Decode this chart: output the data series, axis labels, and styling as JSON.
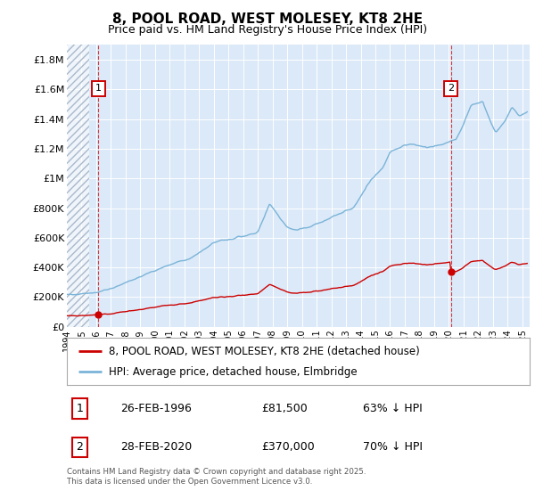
{
  "title": "8, POOL ROAD, WEST MOLESEY, KT8 2HE",
  "subtitle": "Price paid vs. HM Land Registry's House Price Index (HPI)",
  "legend1": "8, POOL ROAD, WEST MOLESEY, KT8 2HE (detached house)",
  "legend2": "HPI: Average price, detached house, Elmbridge",
  "transaction1_label": "1",
  "transaction1_date": "26-FEB-1996",
  "transaction1_price": "£81,500",
  "transaction1_hpi": "63% ↓ HPI",
  "transaction2_label": "2",
  "transaction2_date": "28-FEB-2020",
  "transaction2_price": "£370,000",
  "transaction2_hpi": "70% ↓ HPI",
  "footer_line1": "Contains HM Land Registry data © Crown copyright and database right 2025.",
  "footer_line2": "This data is licensed under the Open Government Licence v3.0.",
  "xmin": 1994.0,
  "xmax": 2025.5,
  "ymin": 0,
  "ymax": 1900000,
  "yticks": [
    0,
    200000,
    400000,
    600000,
    800000,
    1000000,
    1200000,
    1400000,
    1600000,
    1800000
  ],
  "ytick_labels": [
    "£0",
    "£200K",
    "£400K",
    "£600K",
    "£800K",
    "£1M",
    "£1.2M",
    "£1.4M",
    "£1.6M",
    "£1.8M"
  ],
  "hpi_color": "#7ab4d8",
  "price_color": "#cc0000",
  "transaction1_x": 1996.15,
  "transaction1_y": 81500,
  "transaction2_x": 2020.15,
  "transaction2_y": 370000,
  "plot_bg": "#dce9f8",
  "hatch_color": "#aab8ca",
  "hatch_end_x": 1995.5
}
